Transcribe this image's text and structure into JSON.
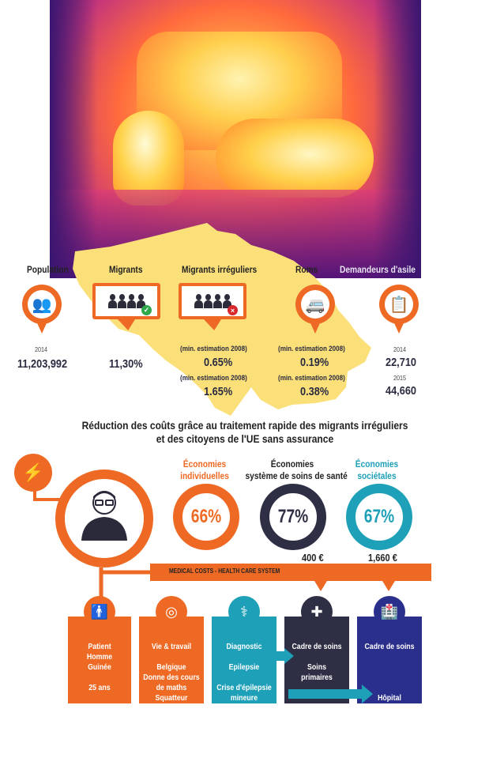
{
  "categories": {
    "population": "Population",
    "migrants": "Migrants",
    "irregular": "Migrants irréguliers",
    "roms": "Roms",
    "asylum": "Demandeurs d'asile"
  },
  "population": {
    "year": "2014",
    "value": "11,203,992"
  },
  "migrants": {
    "value": "11,30%"
  },
  "irregular": {
    "est1": "(min. estimation 2008)",
    "val1": "0.65%",
    "est2": "(min. estimation 2008)",
    "val2": "1.65%"
  },
  "roms": {
    "est1": "(min. estimation 2008)",
    "val1": "0.19%",
    "est2": "(min. estimation 2008)",
    "val2": "0.38%"
  },
  "asylum": {
    "year1": "2014",
    "val1": "22,710",
    "year2": "2015",
    "val2": "44,660"
  },
  "subtitle": {
    "line1": "Réduction des coûts grâce au traitement rapide des migrants irréguliers",
    "line2": "et des citoyens de l'UE sans assurance"
  },
  "economies": [
    {
      "line1": "Économies",
      "line2": "individuelles",
      "value": "66%",
      "color": "#ee6a24"
    },
    {
      "line1": "Économies",
      "line2": "système de soins de santé",
      "value": "77%",
      "color": "#2e2e44"
    },
    {
      "line1": "Économies",
      "line2": "sociétales",
      "value": "67%",
      "color": "#1ea0b8"
    }
  ],
  "costs": {
    "label": "MEDICAL COSTS - HEALTH CARE SYSTEM",
    "value1": "400 €",
    "value2": "1,660 €"
  },
  "boxes": {
    "patient": {
      "l1": "Patient",
      "l2": "Homme",
      "l3": "Guinée",
      "l4": "25 ans"
    },
    "life": {
      "title": "Vie & travail",
      "l1": "Belgique",
      "l2": "Donne des cours",
      "l3": "de maths",
      "l4": "Squatteur"
    },
    "diagnosis": {
      "title": "Diagnostic",
      "l1": "Epilepsie",
      "l2": "Crise d'épilepsie",
      "l3": "mineure"
    },
    "care1": {
      "title": "Cadre de soins",
      "l1": "Soins",
      "l2": "primaires"
    },
    "care2": {
      "title": "Cadre de soins",
      "l1": "Hôpital"
    }
  },
  "colors": {
    "orange": "#ee6a24",
    "navy": "#2e2e44",
    "teal": "#1ea0b8",
    "blue": "#2b2f8c",
    "map": "#fbe07a"
  },
  "icons": [
    "crowd-icon",
    "people-check-icon",
    "people-cross-icon",
    "caravan-icon",
    "document-icon",
    "brain-icon",
    "person-icon",
    "target-icon",
    "doctor-icon",
    "nurse-icon",
    "hospital-icon"
  ]
}
